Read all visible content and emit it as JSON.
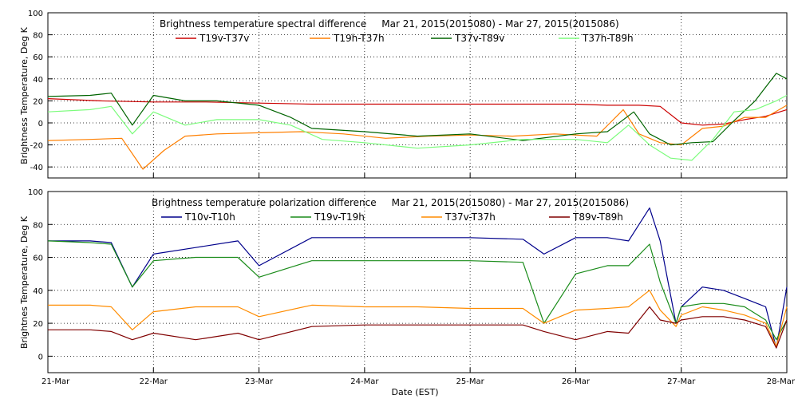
{
  "chart_data": [
    {
      "type": "line",
      "title": "Brightness temperature spectral difference     Mar 21, 2015(2015080) - Mar 27, 2015(2015086)",
      "ylabel": "Brightness Temperature, Deg K",
      "xlabel": "",
      "ylim": [
        -50,
        100
      ],
      "yticks": [
        -40,
        -20,
        0,
        20,
        40,
        60,
        80,
        100
      ],
      "xlim": [
        0,
        7
      ],
      "grid": true,
      "legend_position": "top",
      "series": [
        {
          "name": "T19v-T37v",
          "color": "#cc0000",
          "x": [
            0,
            0.5,
            1,
            1.5,
            2,
            2.5,
            3,
            3.5,
            4,
            4.5,
            5,
            5.3,
            5.6,
            5.8,
            6,
            6.2,
            6.4,
            6.6,
            6.8,
            7
          ],
          "y": [
            22,
            20,
            19,
            19,
            18,
            17,
            17,
            17,
            17,
            17,
            17,
            16,
            16,
            15,
            0,
            -2,
            -1,
            3,
            6,
            12
          ]
        },
        {
          "name": "T19h-T37h",
          "color": "#ff7f00",
          "x": [
            0,
            0.4,
            0.7,
            0.9,
            1.1,
            1.3,
            1.6,
            2,
            2.4,
            2.8,
            3.2,
            3.6,
            4,
            4.4,
            4.8,
            5.2,
            5.45,
            5.6,
            5.8,
            6,
            6.2,
            6.4,
            6.6,
            6.8,
            7
          ],
          "y": [
            -16,
            -15,
            -14,
            -42,
            -25,
            -12,
            -10,
            -9,
            -8,
            -10,
            -14,
            -12,
            -11,
            -12,
            -10,
            -12,
            12,
            -10,
            -18,
            -20,
            -5,
            -3,
            5,
            5,
            16
          ]
        },
        {
          "name": "T37v-T89v",
          "color": "#006400",
          "x": [
            0,
            0.4,
            0.6,
            0.8,
            1,
            1.3,
            1.6,
            2,
            2.3,
            2.5,
            3,
            3.5,
            4,
            4.5,
            5,
            5.3,
            5.55,
            5.7,
            5.9,
            6.1,
            6.3,
            6.5,
            6.7,
            6.9,
            7
          ],
          "y": [
            24,
            25,
            27,
            -2,
            25,
            20,
            20,
            16,
            5,
            -5,
            -8,
            -12,
            -10,
            -16,
            -10,
            -8,
            10,
            -10,
            -20,
            -18,
            -17,
            2,
            20,
            45,
            40
          ]
        },
        {
          "name": "T37h-T89h",
          "color": "#7cfc7c",
          "x": [
            0,
            0.4,
            0.6,
            0.8,
            1,
            1.3,
            1.6,
            2,
            2.3,
            2.6,
            3,
            3.5,
            4,
            4.5,
            5,
            5.3,
            5.5,
            5.7,
            5.9,
            6.1,
            6.3,
            6.5,
            6.7,
            6.9,
            7
          ],
          "y": [
            10,
            12,
            15,
            -10,
            10,
            -2,
            3,
            3,
            -2,
            -15,
            -18,
            -23,
            -20,
            -15,
            -15,
            -18,
            -2,
            -20,
            -32,
            -34,
            -15,
            10,
            12,
            20,
            25
          ]
        }
      ]
    },
    {
      "type": "line",
      "title": "Brightness temperature polarization difference     Mar 21, 2015(2015080) - Mar 27, 2015(2015086)",
      "ylabel": "Brightnes Temperature, Deg K",
      "xlabel": "Date (EST)",
      "ylim": [
        -10,
        100
      ],
      "yticks": [
        0,
        20,
        40,
        60,
        80,
        100
      ],
      "xlim": [
        0,
        7
      ],
      "xticks": [
        "21-Mar",
        "22-Mar",
        "23-Mar",
        "24-Mar",
        "25-Mar",
        "26-Mar",
        "27-Mar",
        "28-Mar"
      ],
      "grid": true,
      "legend_position": "top",
      "series": [
        {
          "name": "T10v-T10h",
          "color": "#00008b",
          "x": [
            0,
            0.4,
            0.6,
            0.8,
            1,
            1.4,
            1.8,
            2,
            2.5,
            3,
            3.5,
            4,
            4.5,
            4.7,
            5,
            5.3,
            5.5,
            5.7,
            5.8,
            5.95,
            6,
            6.2,
            6.4,
            6.6,
            6.8,
            6.9,
            7
          ],
          "y": [
            70,
            70,
            69,
            42,
            62,
            66,
            70,
            55,
            72,
            72,
            72,
            72,
            71,
            62,
            72,
            72,
            70,
            90,
            70,
            20,
            30,
            42,
            40,
            35,
            30,
            5,
            42
          ]
        },
        {
          "name": "T19v-T19h",
          "color": "#1a8c1a",
          "x": [
            0,
            0.4,
            0.6,
            0.8,
            1,
            1.4,
            1.8,
            2,
            2.5,
            3,
            3.5,
            4,
            4.5,
            4.7,
            5,
            5.3,
            5.5,
            5.7,
            5.8,
            5.95,
            6,
            6.2,
            6.4,
            6.6,
            6.8,
            6.9,
            7
          ],
          "y": [
            70,
            69,
            68,
            42,
            58,
            60,
            60,
            48,
            58,
            58,
            58,
            58,
            57,
            20,
            50,
            55,
            55,
            68,
            45,
            20,
            30,
            32,
            32,
            30,
            22,
            10,
            22
          ]
        },
        {
          "name": "T37v-T37h",
          "color": "#ff8c00",
          "x": [
            0,
            0.4,
            0.6,
            0.8,
            1,
            1.4,
            1.8,
            2,
            2.5,
            3,
            3.5,
            4,
            4.5,
            4.7,
            5,
            5.3,
            5.5,
            5.7,
            5.8,
            5.95,
            6,
            6.2,
            6.4,
            6.6,
            6.8,
            6.9,
            7
          ],
          "y": [
            31,
            31,
            30,
            16,
            27,
            30,
            30,
            24,
            31,
            30,
            30,
            29,
            29,
            20,
            28,
            29,
            30,
            40,
            28,
            18,
            25,
            30,
            28,
            25,
            20,
            6,
            30
          ]
        },
        {
          "name": "T89v-T89h",
          "color": "#800000",
          "x": [
            0,
            0.4,
            0.6,
            0.8,
            1,
            1.4,
            1.8,
            2,
            2.5,
            3,
            3.5,
            4,
            4.5,
            4.7,
            5,
            5.3,
            5.5,
            5.7,
            5.8,
            5.95,
            6,
            6.2,
            6.4,
            6.6,
            6.8,
            6.9,
            7
          ],
          "y": [
            16,
            16,
            15,
            10,
            14,
            10,
            14,
            10,
            18,
            19,
            19,
            19,
            19,
            15,
            10,
            15,
            14,
            30,
            22,
            20,
            22,
            24,
            24,
            22,
            18,
            5,
            22
          ]
        }
      ]
    }
  ]
}
